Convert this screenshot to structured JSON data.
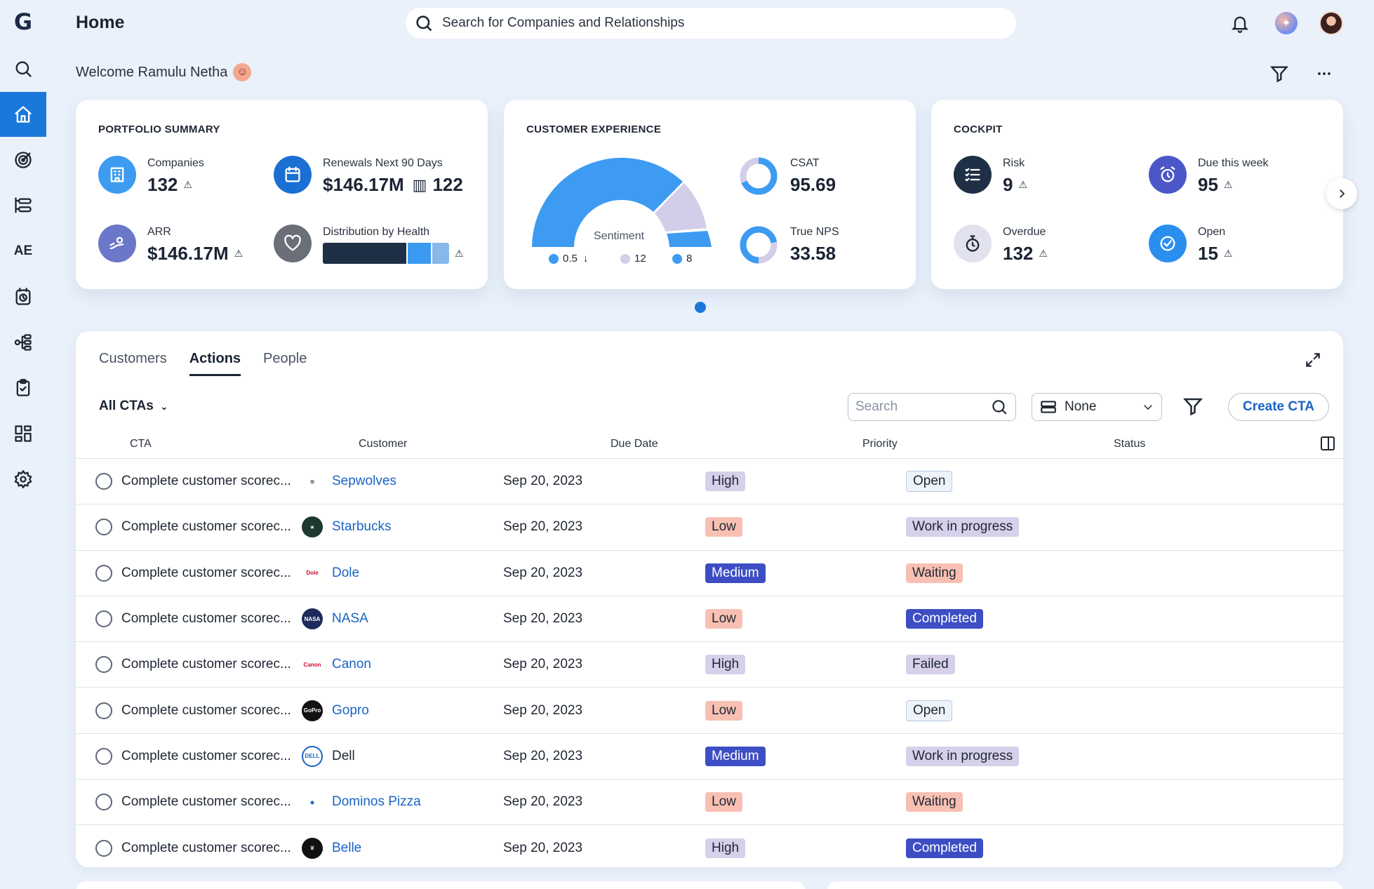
{
  "app": {
    "logo": "G",
    "page_title": "Home",
    "search_placeholder": "Search for Companies and Relationships",
    "welcome": "Welcome Ramulu Netha",
    "sidebar_text_item": "AE"
  },
  "portfolio": {
    "title": "PORTFOLIO SUMMARY",
    "companies_label": "Companies",
    "companies_value": "132",
    "renewals_label": "Renewals Next 90 Days",
    "renewals_value": "$146.17M",
    "renewals_count": "122",
    "arr_label": "ARR",
    "arr_value": "$146.17M",
    "health_label": "Distribution by Health"
  },
  "experience": {
    "title": "CUSTOMER EXPERIENCE",
    "sentiment_label": "Sentiment",
    "legend": [
      {
        "value": "0.5",
        "color": "#3d9bf2",
        "trend": "↓"
      },
      {
        "value": "12",
        "color": "#d2cde8",
        "trend": ""
      },
      {
        "value": "8",
        "color": "#3d9bf2",
        "trend": ""
      }
    ],
    "csat_label": "CSAT",
    "csat_value": "95.69",
    "nps_label": "True NPS",
    "nps_value": "33.58"
  },
  "cockpit": {
    "title": "COCKPIT",
    "risk_label": "Risk",
    "risk_value": "9",
    "due_label": "Due this week",
    "due_value": "95",
    "overdue_label": "Overdue",
    "overdue_value": "132",
    "open_label": "Open",
    "open_value": "15"
  },
  "actions": {
    "tabs": [
      "Customers",
      "Actions",
      "People"
    ],
    "active_tab": "Actions",
    "filter_label": "All CTAs",
    "search_placeholder": "Search",
    "group_value": "None",
    "create_label": "Create CTA",
    "columns": [
      "CTA",
      "Customer",
      "Due Date",
      "Priority",
      "Status"
    ],
    "rows": [
      {
        "cta": "Complete customer scorec...",
        "customer": "Sepwolves",
        "linked": true,
        "due": "Sep 20, 2023",
        "priority": "High",
        "status": "Open"
      },
      {
        "cta": "Complete customer scorec...",
        "customer": "Starbucks",
        "linked": true,
        "due": "Sep 20, 2023",
        "priority": "Low",
        "status": "Work in progress"
      },
      {
        "cta": "Complete customer scorec...",
        "customer": "Dole",
        "linked": true,
        "due": "Sep 20, 2023",
        "priority": "Medium",
        "status": "Waiting"
      },
      {
        "cta": "Complete customer scorec...",
        "customer": "NASA",
        "linked": true,
        "due": "Sep 20, 2023",
        "priority": "Low",
        "status": "Completed"
      },
      {
        "cta": "Complete customer scorec...",
        "customer": "Canon",
        "linked": true,
        "due": "Sep 20, 2023",
        "priority": "High",
        "status": "Failed"
      },
      {
        "cta": "Complete customer scorec...",
        "customer": "Gopro",
        "linked": true,
        "due": "Sep 20, 2023",
        "priority": "Low",
        "status": "Open"
      },
      {
        "cta": "Complete customer scorec...",
        "customer": "Dell",
        "linked": false,
        "due": "Sep 20, 2023",
        "priority": "Medium",
        "status": "Work in progress"
      },
      {
        "cta": "Complete customer scorec...",
        "customer": "Dominos Pizza",
        "linked": true,
        "due": "Sep 20, 2023",
        "priority": "Low",
        "status": "Waiting"
      },
      {
        "cta": "Complete customer scorec...",
        "customer": "Belle",
        "linked": true,
        "due": "Sep 20, 2023",
        "priority": "High",
        "status": "Completed"
      }
    ]
  }
}
